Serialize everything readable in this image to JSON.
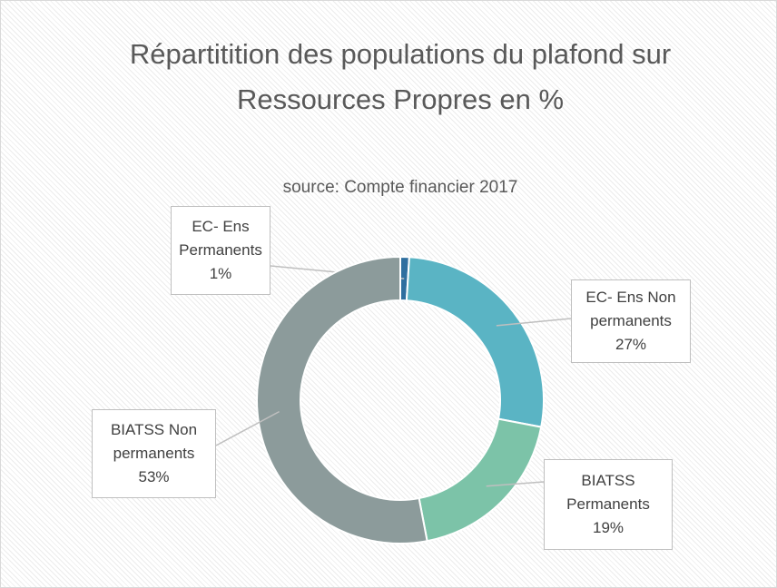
{
  "chart_data": {
    "type": "donut",
    "title": "Répartitition des populations du plafond sur Ressources Propres en %",
    "subtitle": "source: Compte financier 2017",
    "categories": [
      "EC- Ens Permanents",
      "EC- Ens Non permanents",
      "BIATSS Permanents",
      "BIATSS Non permanents"
    ],
    "values": [
      1,
      27,
      19,
      53
    ],
    "value_labels": [
      "1%",
      "27%",
      "19%",
      "53%"
    ],
    "colors": [
      "#2f6f9f",
      "#5ab4c4",
      "#7cc3a8",
      "#8c9b9b"
    ]
  }
}
